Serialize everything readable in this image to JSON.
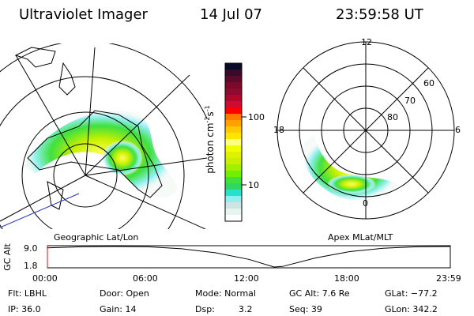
{
  "header": {
    "instrument": "Ultraviolet Imager",
    "date": "14 Jul 07",
    "time": "23:59:58 UT"
  },
  "colorbar": {
    "label": "photon cm",
    "label_exp1": "-2",
    "label_mid": "s",
    "label_exp2": "-1",
    "ticks": [
      "100",
      "10"
    ],
    "colors": [
      "#0a0a2a",
      "#3a0a2a",
      "#5a0a2a",
      "#7a0a2a",
      "#900a30",
      "#b0082a",
      "#d00a30",
      "#ff0000",
      "#ff7800",
      "#ffa000",
      "#ffc800",
      "#ffe600",
      "#ffff80",
      "#f0ff00",
      "#e0f000",
      "#c8f000",
      "#a0f000",
      "#70f000",
      "#40e040",
      "#30d860",
      "#28e0d0",
      "#90f0f0",
      "#d0e4e4",
      "#e8f4ee",
      "#ffffff"
    ]
  },
  "left_map": {
    "label": "Geographic Lat/Lon"
  },
  "right_map": {
    "label": "Apex MLat/MLT",
    "mlt_labels": {
      "top": "12",
      "right": "6",
      "bottom": "0",
      "left": "18"
    },
    "lat_labels": [
      "60",
      "70",
      "80"
    ]
  },
  "altitude_plot": {
    "ylabel": "GC Alt",
    "yticks": [
      "9.0",
      "1.8"
    ],
    "xticks": [
      "00:00",
      "06:00",
      "12:00",
      "18:00",
      "23:59"
    ],
    "series_hours": [
      0,
      2,
      4,
      6,
      8,
      10,
      12,
      13.5,
      14,
      16,
      18,
      20,
      22,
      24
    ],
    "series_alt": [
      8.5,
      8.9,
      9.0,
      8.9,
      8.2,
      6.8,
      4.5,
      1.8,
      2.0,
      5.0,
      7.2,
      8.4,
      8.9,
      9.0
    ]
  },
  "status": {
    "filter": "Flt: LBHL",
    "ip": "IP: 36.0",
    "door": "Door: Open",
    "gain": "Gain: 14",
    "mode": "Mode: Normal",
    "dsp_label": "Dsp:",
    "dsp_value": "3.2",
    "gc_alt": "GC Alt: 7.6 Re",
    "seq": "Seq: 39",
    "glat": "GLat: −77.2",
    "glon": "GLon: 342.2"
  }
}
